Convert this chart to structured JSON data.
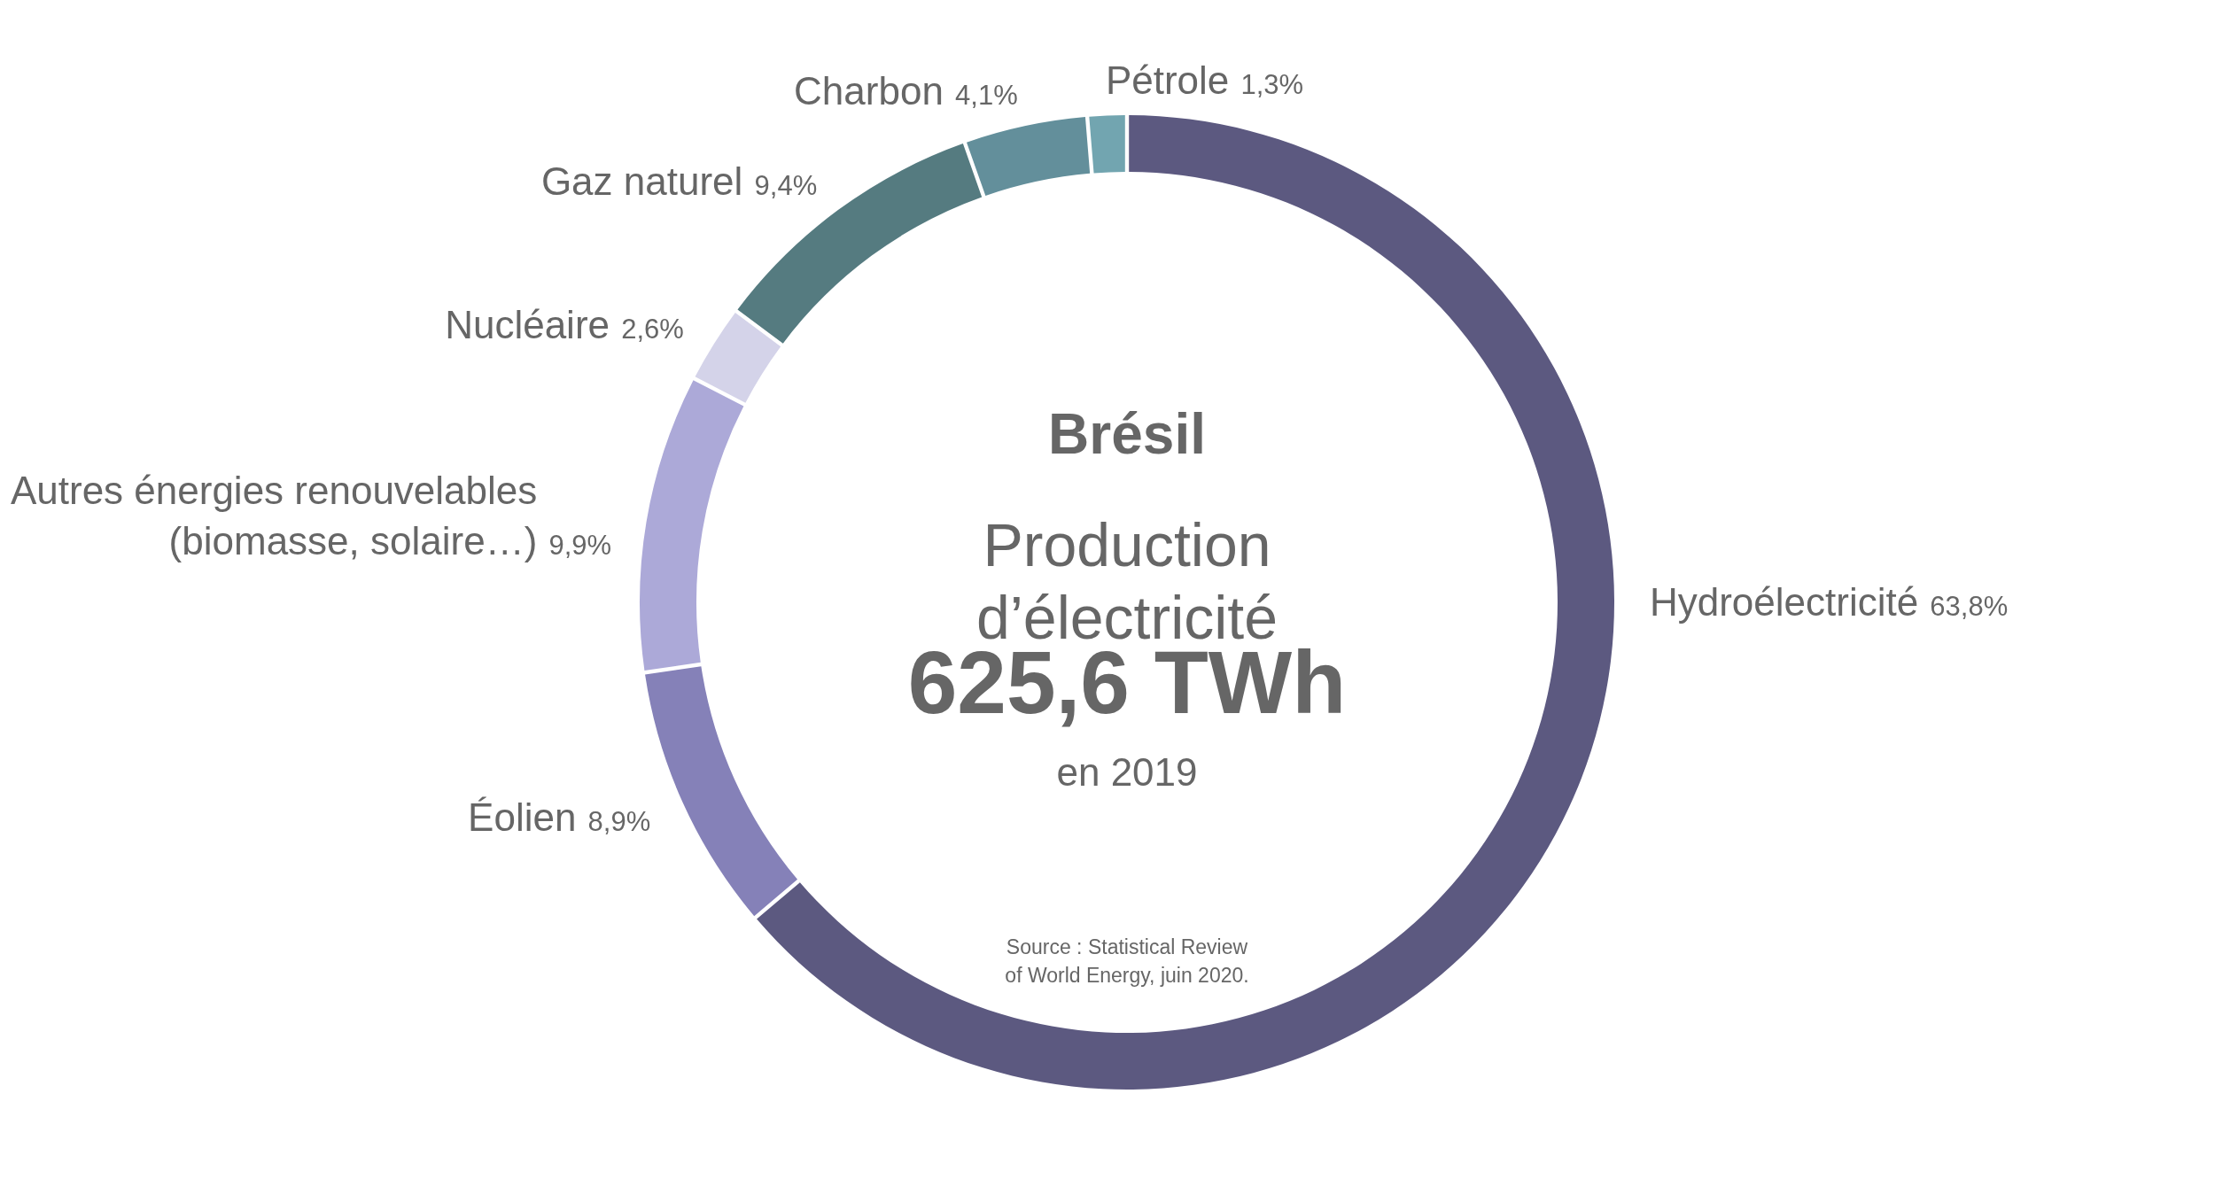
{
  "chart_data": {
    "type": "donut",
    "title": "Brésil",
    "subtitle": "Production\nd’électricité",
    "categories": [
      "Hydroélectricité",
      "Éolien",
      "Autres énergies renouvelables\n(biomasse, solaire…)",
      "Nucléaire",
      "Gaz naturel",
      "Charbon",
      "Pétrole"
    ],
    "values": [
      63.8,
      8.9,
      9.9,
      2.6,
      9.4,
      4.1,
      1.3
    ],
    "colors": [
      "#5c5980",
      "#8581b8",
      "#aca9d8",
      "#d4d3e9",
      "#557b80",
      "#638f9b",
      "#72a5b0"
    ],
    "value_labels": [
      "63,8%",
      "8,9%",
      "9,9%",
      "2,6%",
      "9,4%",
      "4,1%",
      "1,3%"
    ],
    "annotations": [
      "625,6 TWh",
      "en 2019",
      "Source : Statistical Review\nof World Energy, juin 2020."
    ]
  }
}
